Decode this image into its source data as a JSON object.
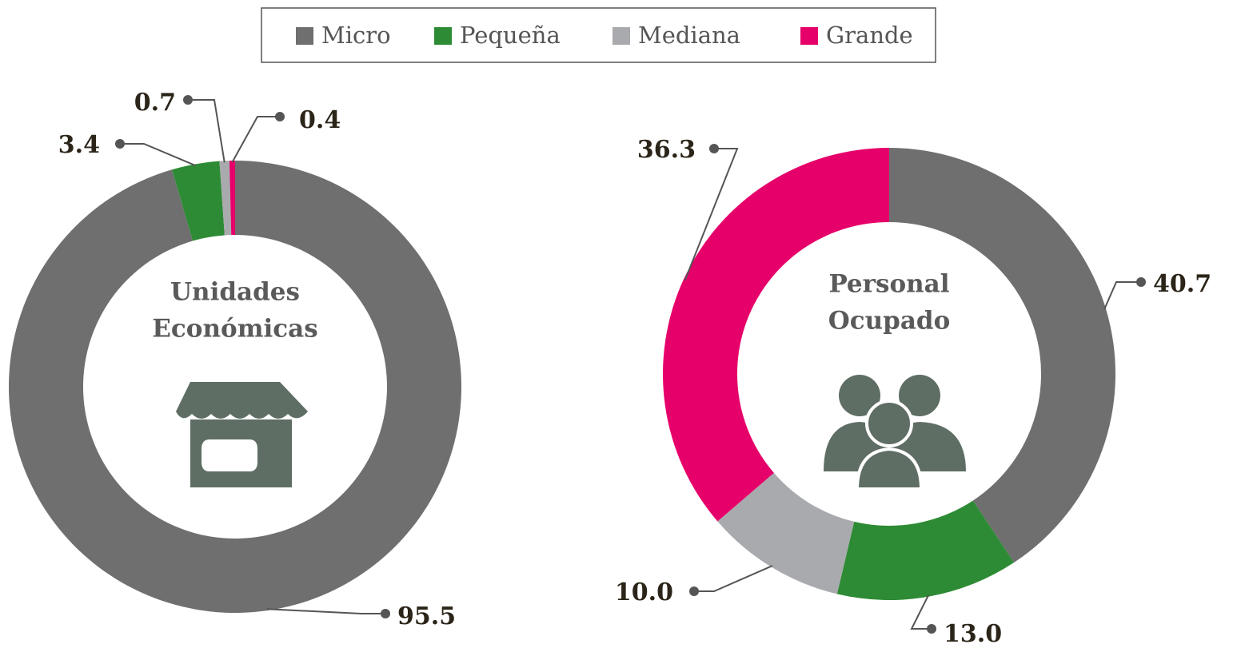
{
  "chart_data": [
    {
      "type": "donut",
      "center_label": [
        "Unidades",
        "Económicas"
      ],
      "categories": [
        "Micro",
        "Pequeña",
        "Mediana",
        "Grande"
      ],
      "colors": [
        "#6f6f6f",
        "#2e8b35",
        "#a9aaad",
        "#e6006a"
      ],
      "values": [
        95.5,
        3.4,
        0.7,
        0.4
      ]
    },
    {
      "type": "donut",
      "center_label": [
        "Personal",
        "Ocupado"
      ],
      "categories": [
        "Micro",
        "Pequeña",
        "Mediana",
        "Grande"
      ],
      "colors": [
        "#6f6f6f",
        "#2e8b35",
        "#a9aaad",
        "#e6006a"
      ],
      "values": [
        40.7,
        13.0,
        10.0,
        36.3
      ],
      "value_labels": [
        "40.7",
        "13.0",
        "10.0",
        "36.3"
      ]
    }
  ]
}
